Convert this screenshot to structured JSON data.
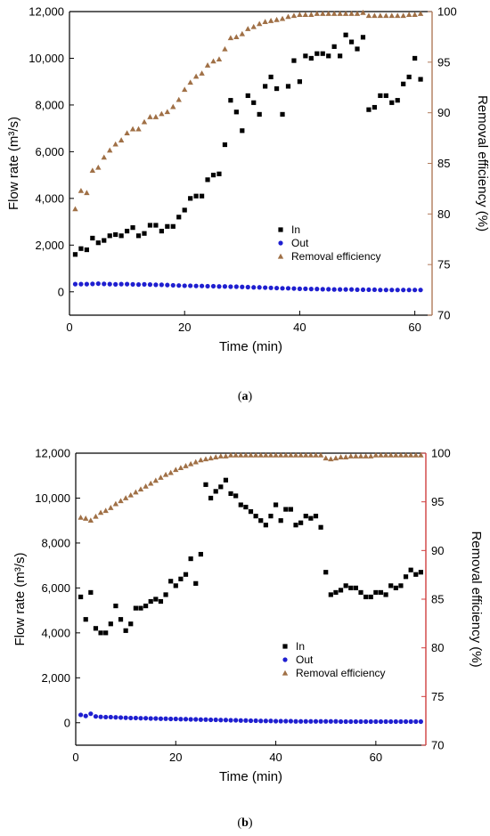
{
  "panels": [
    {
      "caption_open": "(",
      "caption_letter": "a",
      "caption_close": ")"
    },
    {
      "caption_open": "(",
      "caption_letter": "b",
      "caption_close": ")"
    }
  ],
  "chart_data": [
    {
      "type": "scatter",
      "title": "",
      "xlabel": "Time (min)",
      "ylabel": "Flow rate (m³/s)",
      "y2label": "Removal efficiency (%)",
      "xlim": [
        0,
        63
      ],
      "ylim": [
        -1000,
        12000
      ],
      "y2lim": [
        70,
        100
      ],
      "xticks": [
        0,
        20,
        40,
        60
      ],
      "xtick_labels": [
        "0",
        "20",
        "40",
        "60"
      ],
      "yticks": [
        0,
        2000,
        4000,
        6000,
        8000,
        10000,
        12000
      ],
      "ytick_labels": [
        "0",
        "2,000",
        "4,000",
        "6,000",
        "8,000",
        "10,000",
        "12,000"
      ],
      "y2ticks": [
        70,
        75,
        80,
        85,
        90,
        95,
        100
      ],
      "y2tick_labels": [
        "70",
        "75",
        "80",
        "85",
        "90",
        "95",
        "100"
      ],
      "grid": false,
      "legend_position": "lower-right",
      "colors": {
        "In": "#000000",
        "Out": "#1f1fd0",
        "Removal efficiency": "#a07046",
        "right_axis": "#b07a5a"
      },
      "series": [
        {
          "name": "In",
          "axis": "left",
          "marker": "square",
          "x": [
            1,
            2,
            3,
            4,
            5,
            6,
            7,
            8,
            9,
            10,
            11,
            12,
            13,
            14,
            15,
            16,
            17,
            18,
            19,
            20,
            21,
            22,
            23,
            24,
            25,
            26,
            27,
            28,
            29,
            30,
            31,
            32,
            33,
            34,
            35,
            36,
            37,
            38,
            39,
            40,
            41,
            42,
            43,
            44,
            45,
            46,
            47,
            48,
            49,
            50,
            51,
            52,
            53,
            54,
            55,
            56,
            57,
            58,
            59,
            60,
            61
          ],
          "values": [
            1600,
            1850,
            1800,
            2300,
            2100,
            2200,
            2400,
            2450,
            2400,
            2600,
            2750,
            2400,
            2500,
            2850,
            2850,
            2600,
            2800,
            2800,
            3200,
            3500,
            4000,
            4100,
            4100,
            4800,
            5000,
            5050,
            6300,
            8200,
            7700,
            6900,
            8400,
            8100,
            7600,
            8800,
            9200,
            8700,
            7600,
            8800,
            9900,
            9000,
            10100,
            10000,
            10200,
            10200,
            10100,
            10500,
            10100,
            11000,
            10700,
            10400,
            10900,
            7800,
            7900,
            8400,
            8400,
            8100,
            8200,
            8900,
            9200,
            10000,
            9100
          ]
        },
        {
          "name": "Out",
          "axis": "left",
          "marker": "circle",
          "x": [
            1,
            2,
            3,
            4,
            5,
            6,
            7,
            8,
            9,
            10,
            11,
            12,
            13,
            14,
            15,
            16,
            17,
            18,
            19,
            20,
            21,
            22,
            23,
            24,
            25,
            26,
            27,
            28,
            29,
            30,
            31,
            32,
            33,
            34,
            35,
            36,
            37,
            38,
            39,
            40,
            41,
            42,
            43,
            44,
            45,
            46,
            47,
            48,
            49,
            50,
            51,
            52,
            53,
            54,
            55,
            56,
            57,
            58,
            59,
            60,
            61
          ],
          "values": [
            330,
            330,
            330,
            340,
            350,
            340,
            330,
            320,
            330,
            330,
            320,
            310,
            320,
            310,
            300,
            300,
            290,
            280,
            270,
            260,
            260,
            250,
            250,
            240,
            240,
            230,
            230,
            220,
            220,
            210,
            200,
            190,
            190,
            180,
            170,
            160,
            150,
            150,
            140,
            130,
            130,
            120,
            120,
            110,
            110,
            100,
            100,
            100,
            100,
            90,
            90,
            90,
            90,
            80,
            80,
            80,
            80,
            80,
            80,
            80,
            80
          ]
        },
        {
          "name": "Removal efficiency",
          "axis": "right",
          "marker": "triangle",
          "x": [
            1,
            2,
            3,
            4,
            5,
            6,
            7,
            8,
            9,
            10,
            11,
            12,
            13,
            14,
            15,
            16,
            17,
            18,
            19,
            20,
            21,
            22,
            23,
            24,
            25,
            26,
            27,
            28,
            29,
            30,
            31,
            32,
            33,
            34,
            35,
            36,
            37,
            38,
            39,
            40,
            41,
            42,
            43,
            44,
            45,
            46,
            47,
            48,
            49,
            50,
            51,
            52,
            53,
            54,
            55,
            56,
            57,
            58,
            59,
            60,
            61
          ],
          "values": [
            80.5,
            82.3,
            82.1,
            84.3,
            84.6,
            85.6,
            86.3,
            86.9,
            87.3,
            88.0,
            88.4,
            88.4,
            89.1,
            89.6,
            89.6,
            89.9,
            90.1,
            90.6,
            91.3,
            92.3,
            93.0,
            93.6,
            93.9,
            94.7,
            95.1,
            95.3,
            96.3,
            97.4,
            97.5,
            97.8,
            98.3,
            98.5,
            98.8,
            99.0,
            99.1,
            99.2,
            99.3,
            99.5,
            99.6,
            99.7,
            99.7,
            99.7,
            99.8,
            99.8,
            99.8,
            99.8,
            99.8,
            99.8,
            99.8,
            99.8,
            99.9,
            99.6,
            99.6,
            99.6,
            99.6,
            99.6,
            99.6,
            99.6,
            99.7,
            99.7,
            99.8
          ]
        }
      ]
    },
    {
      "type": "scatter",
      "title": "",
      "xlabel": "Time (min)",
      "ylabel": "Flow rate (m³/s)",
      "y2label": "Removal efficiency (%)",
      "xlim": [
        0,
        70
      ],
      "ylim": [
        -1000,
        12000
      ],
      "y2lim": [
        70,
        100
      ],
      "xticks": [
        0,
        20,
        40,
        60
      ],
      "xtick_labels": [
        "0",
        "20",
        "40",
        "60"
      ],
      "yticks": [
        0,
        2000,
        4000,
        6000,
        8000,
        10000,
        12000
      ],
      "ytick_labels": [
        "0",
        "2,000",
        "4,000",
        "6,000",
        "8,000",
        "10,000",
        "12,000"
      ],
      "y2ticks": [
        70,
        75,
        80,
        85,
        90,
        95,
        100
      ],
      "y2tick_labels": [
        "70",
        "75",
        "80",
        "85",
        "90",
        "95",
        "100"
      ],
      "grid": false,
      "legend_position": "lower-right",
      "colors": {
        "In": "#000000",
        "Out": "#1f1fd0",
        "Removal efficiency": "#a07046",
        "right_axis": "#d04040"
      },
      "series": [
        {
          "name": "In",
          "axis": "left",
          "marker": "square",
          "x": [
            1,
            2,
            3,
            4,
            5,
            6,
            7,
            8,
            9,
            10,
            11,
            12,
            13,
            14,
            15,
            16,
            17,
            18,
            19,
            20,
            21,
            22,
            23,
            24,
            25,
            26,
            27,
            28,
            29,
            30,
            31,
            32,
            33,
            34,
            35,
            36,
            37,
            38,
            39,
            40,
            41,
            42,
            43,
            44,
            45,
            46,
            47,
            48,
            49,
            50,
            51,
            52,
            53,
            54,
            55,
            56,
            57,
            58,
            59,
            60,
            61,
            62,
            63,
            64,
            65,
            66,
            67,
            68,
            69
          ],
          "values": [
            5600,
            4600,
            5800,
            4200,
            4000,
            4000,
            4400,
            5200,
            4600,
            4100,
            4400,
            5100,
            5100,
            5200,
            5400,
            5500,
            5400,
            5700,
            6300,
            6100,
            6400,
            6600,
            7300,
            6200,
            7500,
            10600,
            10000,
            10300,
            10500,
            10800,
            10200,
            10100,
            9700,
            9600,
            9400,
            9200,
            9000,
            8800,
            9200,
            9700,
            9000,
            9500,
            9500,
            8800,
            8900,
            9200,
            9100,
            9200,
            8700,
            6700,
            5700,
            5800,
            5900,
            6100,
            6000,
            6000,
            5800,
            5600,
            5600,
            5800,
            5800,
            5700,
            6100,
            6000,
            6100,
            6500,
            6800,
            6600,
            6700
          ]
        },
        {
          "name": "Out",
          "axis": "left",
          "marker": "circle",
          "x": [
            1,
            2,
            3,
            4,
            5,
            6,
            7,
            8,
            9,
            10,
            11,
            12,
            13,
            14,
            15,
            16,
            17,
            18,
            19,
            20,
            21,
            22,
            23,
            24,
            25,
            26,
            27,
            28,
            29,
            30,
            31,
            32,
            33,
            34,
            35,
            36,
            37,
            38,
            39,
            40,
            41,
            42,
            43,
            44,
            45,
            46,
            47,
            48,
            49,
            50,
            51,
            52,
            53,
            54,
            55,
            56,
            57,
            58,
            59,
            60,
            61,
            62,
            63,
            64,
            65,
            66,
            67,
            68,
            69
          ],
          "values": [
            350,
            300,
            400,
            280,
            260,
            250,
            250,
            240,
            230,
            220,
            210,
            210,
            200,
            200,
            190,
            190,
            180,
            180,
            170,
            170,
            160,
            160,
            150,
            150,
            140,
            140,
            130,
            130,
            120,
            120,
            110,
            110,
            100,
            100,
            90,
            90,
            80,
            80,
            80,
            70,
            70,
            70,
            70,
            60,
            60,
            60,
            60,
            60,
            60,
            60,
            60,
            60,
            50,
            50,
            50,
            50,
            50,
            50,
            50,
            50,
            50,
            50,
            50,
            50,
            50,
            50,
            50,
            50,
            50
          ]
        },
        {
          "name": "Removal efficiency",
          "axis": "right",
          "marker": "triangle",
          "x": [
            1,
            2,
            3,
            4,
            5,
            6,
            7,
            8,
            9,
            10,
            11,
            12,
            13,
            14,
            15,
            16,
            17,
            18,
            19,
            20,
            21,
            22,
            23,
            24,
            25,
            26,
            27,
            28,
            29,
            30,
            31,
            32,
            33,
            34,
            35,
            36,
            37,
            38,
            39,
            40,
            41,
            42,
            43,
            44,
            45,
            46,
            47,
            48,
            49,
            50,
            51,
            52,
            53,
            54,
            55,
            56,
            57,
            58,
            59,
            60,
            61,
            62,
            63,
            64,
            65,
            66,
            67,
            68,
            69
          ],
          "values": [
            93.4,
            93.3,
            93.1,
            93.5,
            93.9,
            94.1,
            94.4,
            94.8,
            95.1,
            95.4,
            95.7,
            96.0,
            96.3,
            96.6,
            96.9,
            97.2,
            97.5,
            97.8,
            98.0,
            98.3,
            98.5,
            98.7,
            98.9,
            99.1,
            99.3,
            99.4,
            99.5,
            99.6,
            99.7,
            99.7,
            99.8,
            99.8,
            99.8,
            99.8,
            99.8,
            99.8,
            99.8,
            99.8,
            99.8,
            99.8,
            99.8,
            99.8,
            99.8,
            99.8,
            99.8,
            99.8,
            99.8,
            99.8,
            99.8,
            99.5,
            99.4,
            99.5,
            99.6,
            99.6,
            99.7,
            99.7,
            99.7,
            99.7,
            99.7,
            99.8,
            99.8,
            99.8,
            99.8,
            99.8,
            99.8,
            99.8,
            99.8,
            99.8,
            99.8
          ]
        }
      ]
    }
  ]
}
